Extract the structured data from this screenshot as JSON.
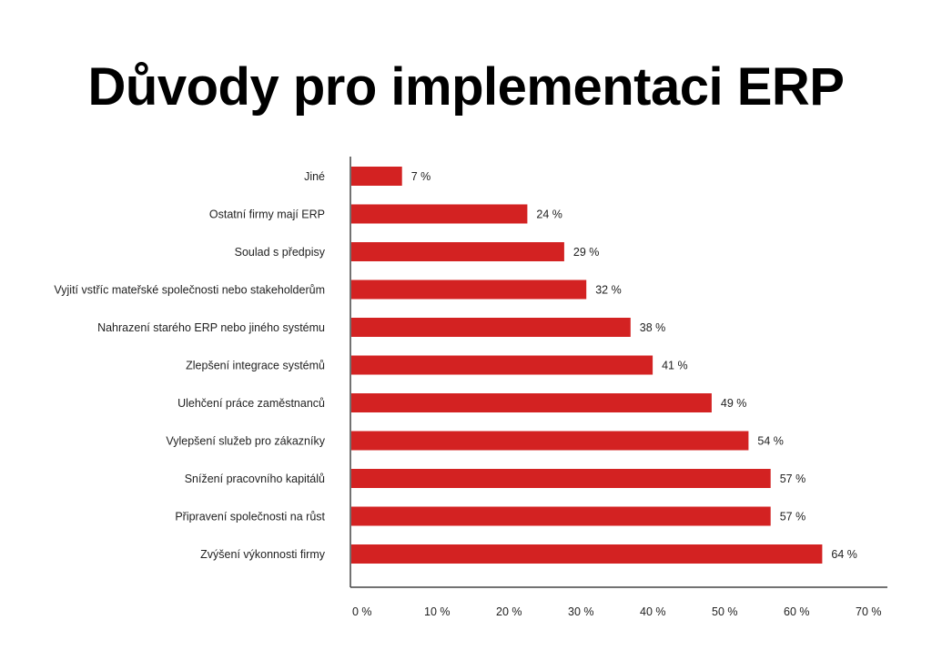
{
  "chart_data": {
    "type": "bar",
    "orientation": "horizontal",
    "title": "Důvody pro implementaci ERP",
    "categories": [
      "Jiné",
      "Ostatní firmy mají ERP",
      "Soulad s předpisy",
      "Vyjití vstříc mateřské společnosti nebo stakeholderům",
      "Nahrazení starého ERP nebo jiného systému",
      "Zlepšení integrace systémů",
      "Ulehčení práce zaměstnanců",
      "Vylepšení služeb pro zákazníky",
      "Snížení pracovního kapitálů",
      "Připravení společnosti na růst",
      "Zvýšení výkonnosti firmy"
    ],
    "values": [
      7,
      24,
      29,
      32,
      38,
      41,
      49,
      54,
      57,
      57,
      64
    ],
    "value_labels": [
      "7 %",
      "24 %",
      "29 %",
      "32 %",
      "38 %",
      "41 %",
      "49 %",
      "54 %",
      "57 %",
      "57 %",
      "64 %"
    ],
    "xticks": [
      "0 %",
      "10 %",
      "20 %",
      "30 %",
      "40 %",
      "50 %",
      "60 %",
      "70 %"
    ],
    "xlim": [
      0,
      70
    ],
    "xlabel": "",
    "ylabel": "",
    "grid": false,
    "bar_color": "#d32222"
  }
}
